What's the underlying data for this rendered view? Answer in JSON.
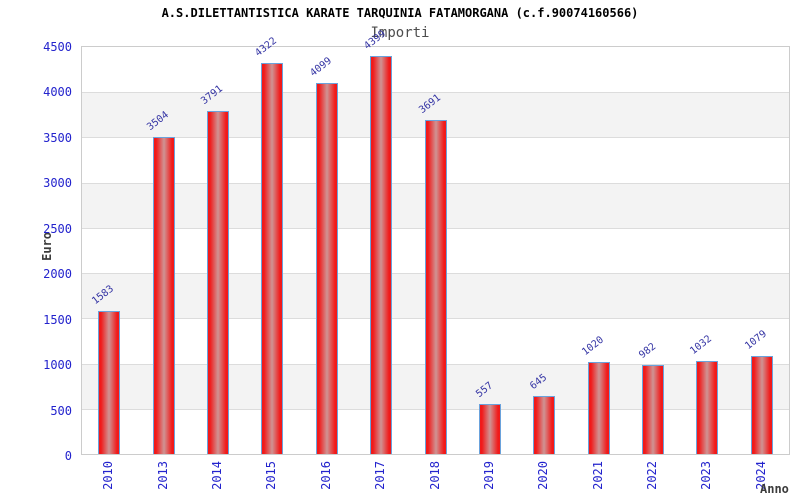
{
  "chart_data": {
    "type": "bar",
    "title": "A.S.DILETTANTISTICA KARATE TARQUINIA FATAMORGANA (c.f.90074160566)",
    "subtitle": "Importi",
    "xlabel": "Anno",
    "ylabel": "Euro",
    "categories": [
      "2010",
      "2013",
      "2014",
      "2015",
      "2016",
      "2017",
      "2018",
      "2019",
      "2020",
      "2021",
      "2022",
      "2023",
      "2024"
    ],
    "values": [
      1583,
      3504,
      3791,
      4322,
      4099,
      4399,
      3691,
      557,
      645,
      1020,
      982,
      1032,
      1079
    ],
    "ylim": [
      0,
      4500
    ],
    "ytick_step": 500,
    "y_tick_labels": [
      "0",
      "500",
      "1000",
      "1500",
      "2000",
      "2500",
      "3000",
      "3500",
      "4000",
      "4500"
    ],
    "grid": "horizontal-bands-alternating",
    "legend_position": "none",
    "bar_value_labels_rotated_deg": -38,
    "x_tick_labels_rotated_deg": -90,
    "colors": {
      "bar_fill_edge": "#f11a1a",
      "bar_fill_center": "#cf9494",
      "bar_border": "#6aa2dc",
      "value_label": "#3434a4",
      "axis_tick_label": "#2323cd",
      "title": "#000000",
      "subtitle": "#4d4d4d",
      "axis_title": "#3c3c3c",
      "band_alt": "#f3f3f3",
      "band_main": "#ffffff",
      "gridline": "#dcdcdc",
      "plot_border": "#cccccc",
      "background": "#ffffff"
    }
  }
}
